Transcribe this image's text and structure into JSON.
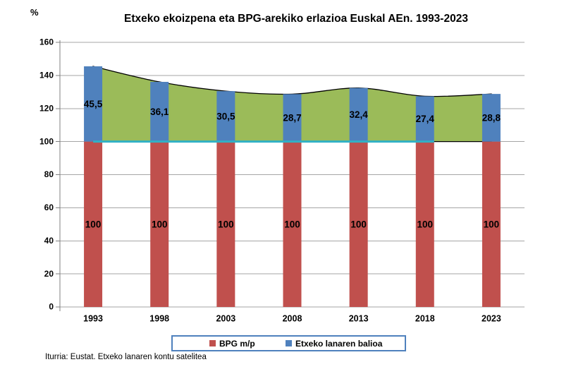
{
  "y_axis_unit": "%",
  "title": "Etxeko ekoizpena eta BPG-arekiko erlazioa Euskal AEn. 1993-2023",
  "source": "Iturria: Eustat. Etxeko lanaren kontu satelitea",
  "legend": [
    {
      "label": "BPG m/p",
      "color": "#C0504D"
    },
    {
      "label": "Etxeko lanaren balioa",
      "color": "#4F81BD"
    }
  ],
  "chart_data": {
    "type": "bar",
    "subtype": "stacked-bars-with-area-and-line",
    "title": "Etxeko ekoizpena eta BPG-arekiko erlazioa Euskal AEn. 1993-2023",
    "categories": [
      "1993",
      "1998",
      "2003",
      "2008",
      "2013",
      "2018",
      "2023"
    ],
    "series": [
      {
        "name": "BPG m/p",
        "type": "bar",
        "color": "#C0504D",
        "values": [
          100,
          100,
          100,
          100,
          100,
          100,
          100
        ],
        "labels": [
          "100",
          "100",
          "100",
          "100",
          "100",
          "100",
          "100"
        ]
      },
      {
        "name": "Etxeko lanaren balioa",
        "type": "bar-stacked",
        "color": "#4F81BD",
        "values": [
          45.5,
          36.1,
          30.5,
          28.7,
          32.4,
          27.4,
          28.8
        ],
        "labels": [
          "45,5",
          "36,1",
          "30,5",
          "28,7",
          "32,4",
          "27,4",
          "28,8"
        ]
      }
    ],
    "area_totals": [
      145.5,
      136.1,
      130.5,
      128.7,
      132.4,
      127.4,
      128.8
    ],
    "area_color": "#9BBB59",
    "area_border_color": "#000000",
    "baseline_line": {
      "value": 100,
      "color": "#31B1C5",
      "span_categories": [
        "1993",
        "2018"
      ]
    },
    "ylim": [
      0,
      160
    ],
    "ytick_step": 20,
    "yticks": [
      "0",
      "20",
      "40",
      "60",
      "80",
      "100",
      "120",
      "140",
      "160"
    ],
    "grid": "horizontal",
    "gridline_color": "#A6A6A6",
    "axis_color": "#808080",
    "legend_position": "bottom",
    "xlabel": "",
    "ylabel": "%"
  }
}
